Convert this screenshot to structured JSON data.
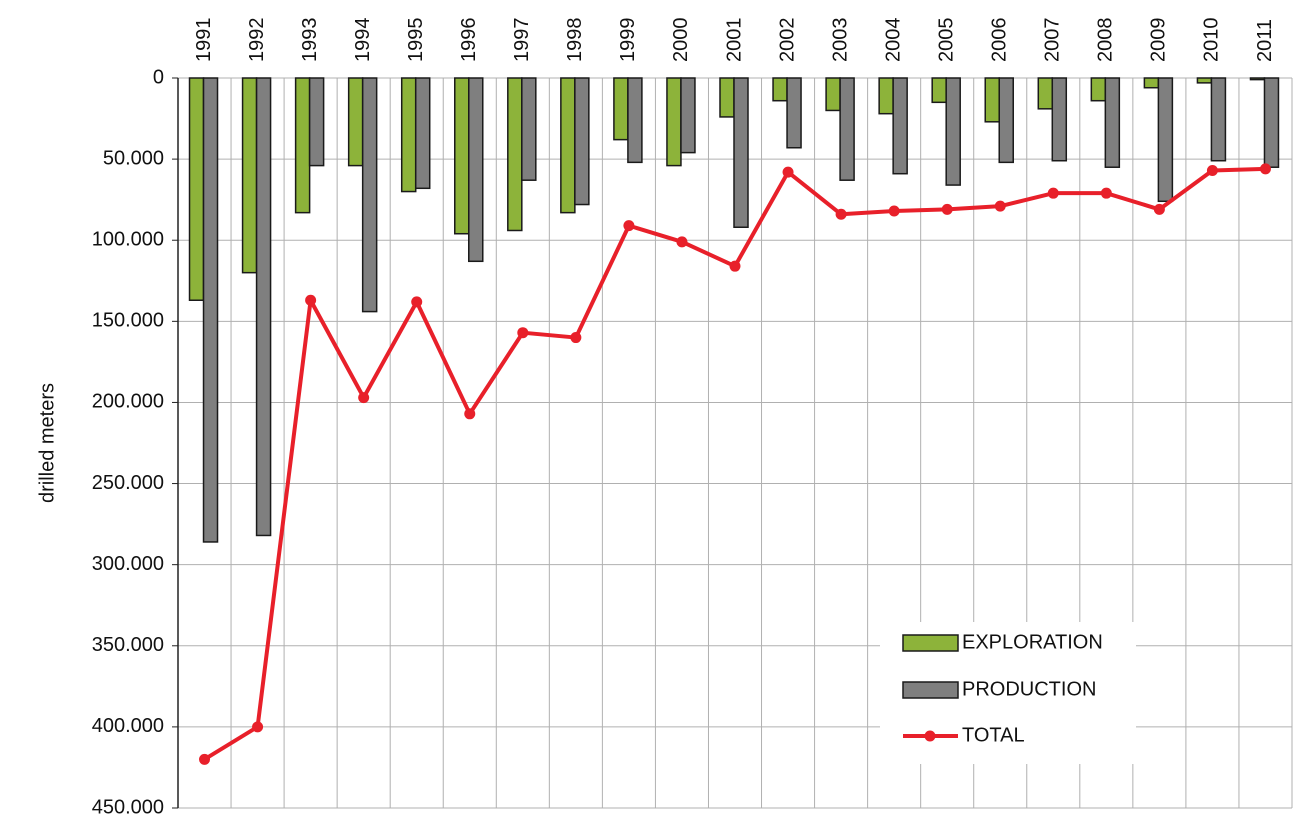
{
  "chart_data": {
    "type": "bar",
    "y_label": "drilled meters",
    "categories": [
      "1991",
      "1992",
      "1993",
      "1994",
      "1995",
      "1996",
      "1997",
      "1998",
      "1999",
      "2000",
      "2001",
      "2002",
      "2003",
      "2004",
      "2005",
      "2006",
      "2007",
      "2008",
      "2009",
      "2010",
      "2011"
    ],
    "series": [
      {
        "name": "EXPLORATION",
        "type": "bar",
        "color": "#8db33a",
        "values": [
          137000,
          120000,
          83000,
          54000,
          70000,
          96000,
          94000,
          83000,
          38000,
          54000,
          24000,
          14000,
          20000,
          22000,
          15000,
          27000,
          19000,
          14000,
          6000,
          3000,
          1000
        ]
      },
      {
        "name": "PRODUCTION",
        "type": "bar",
        "color": "#7f7f7f",
        "values": [
          286000,
          282000,
          54000,
          144000,
          68000,
          113000,
          63000,
          78000,
          52000,
          46000,
          92000,
          43000,
          63000,
          59000,
          66000,
          52000,
          51000,
          55000,
          76000,
          51000,
          55000
        ]
      },
      {
        "name": "TOTAL",
        "type": "line",
        "color": "#e8202a",
        "values": [
          420000,
          400000,
          137000,
          197000,
          138000,
          207000,
          157000,
          160000,
          91000,
          101000,
          116000,
          58000,
          84000,
          82000,
          81000,
          79000,
          71000,
          71000,
          81000,
          57000,
          56000
        ]
      }
    ],
    "ylim": [
      0,
      450000
    ],
    "y_inverted": true,
    "yticks": [
      0,
      {
        "value": 50000,
        "label": "50.000"
      },
      {
        "value": 100000,
        "label": "100.000"
      },
      {
        "value": 150000,
        "label": "150.000"
      },
      {
        "value": 200000,
        "label": "200.000"
      },
      {
        "value": 250000,
        "label": "250.000"
      },
      {
        "value": 300000,
        "label": "300.000"
      },
      {
        "value": 350000,
        "label": "350.000"
      },
      {
        "value": 400000,
        "label": "400.000"
      },
      {
        "value": 450000,
        "label": "450.000"
      }
    ],
    "grid": true
  }
}
